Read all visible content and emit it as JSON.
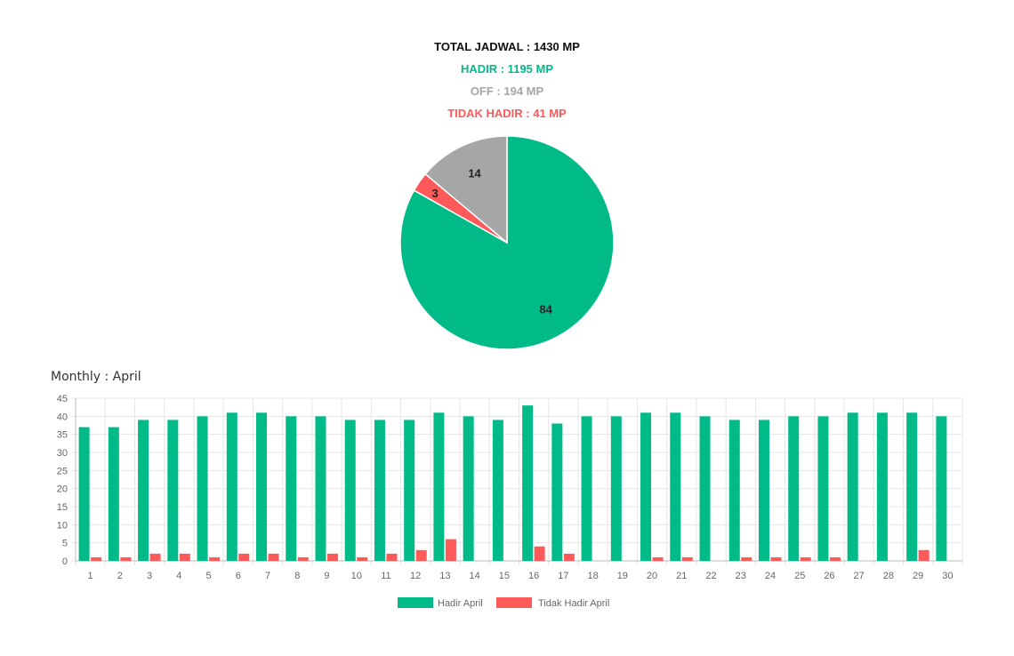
{
  "summary": {
    "total": "TOTAL JADWAL : 1430 MP",
    "hadir": "HADIR : 1195 MP",
    "off": "OFF : 194 MP",
    "tidak_hadir": "TIDAK HADIR : 41 MP"
  },
  "colors": {
    "total": "#111111",
    "hadir": "#00BB88",
    "off": "#A6A6A6",
    "tidak_hadir": "#FF5A5A"
  },
  "chart_data": [
    {
      "type": "pie",
      "categories": [
        "Hadir",
        "Tidak Hadir",
        "Off"
      ],
      "values": [
        84,
        3,
        14
      ],
      "labels": [
        "84",
        "3",
        "14"
      ],
      "colors": [
        "#00BB88",
        "#FF5A5A",
        "#A6A6A6"
      ]
    },
    {
      "type": "bar",
      "title": "Monthly : April",
      "categories": [
        "1",
        "2",
        "3",
        "4",
        "5",
        "6",
        "7",
        "8",
        "9",
        "10",
        "11",
        "12",
        "13",
        "14",
        "15",
        "16",
        "17",
        "18",
        "19",
        "20",
        "21",
        "22",
        "23",
        "24",
        "25",
        "26",
        "27",
        "28",
        "29",
        "30"
      ],
      "series": [
        {
          "name": "Hadir April",
          "color": "#00BB88",
          "values": [
            37,
            37,
            39,
            39,
            40,
            41,
            41,
            40,
            40,
            39,
            39,
            39,
            41,
            40,
            39,
            43,
            38,
            40,
            40,
            41,
            41,
            40,
            39,
            39,
            40,
            40,
            41,
            41,
            41,
            40
          ]
        },
        {
          "name": "Tidak Hadir April",
          "color": "#FF5A5A",
          "values": [
            1,
            1,
            2,
            2,
            1,
            2,
            2,
            1,
            2,
            1,
            2,
            3,
            6,
            0,
            0,
            4,
            2,
            0,
            0,
            1,
            1,
            0,
            1,
            1,
            1,
            1,
            0,
            0,
            3,
            0
          ]
        }
      ],
      "ylim": [
        0,
        45
      ],
      "yticks": [
        0,
        5,
        10,
        15,
        20,
        25,
        30,
        35,
        40,
        45
      ],
      "grid": true,
      "legend": "bottom-center"
    }
  ]
}
